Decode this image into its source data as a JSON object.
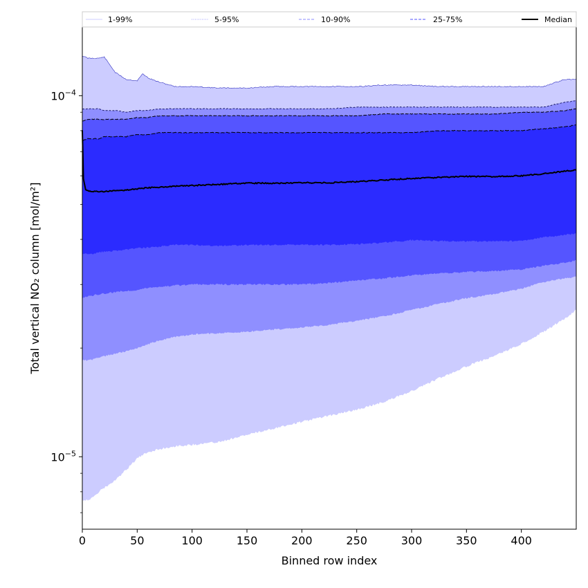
{
  "chart_data": {
    "type": "area",
    "xlabel": "Binned row index",
    "ylabel": "Total vertical NO₂ column [mol/m²]",
    "yscale": "log",
    "xlim": [
      0,
      450
    ],
    "ylim": [
      6.3e-06,
      0.000155
    ],
    "x_ticks": [
      0,
      50,
      100,
      150,
      200,
      250,
      300,
      350,
      400
    ],
    "y_ticks": [
      {
        "value": 1e-05,
        "base": "10",
        "exp": "−5"
      },
      {
        "value": 0.0001,
        "base": "10",
        "exp": "−4"
      }
    ],
    "legend": {
      "placement": "top",
      "entries": [
        {
          "label": "1-99%",
          "color": "#ccccff",
          "style": "solid"
        },
        {
          "label": "5-95%",
          "color": "#a0a0ff",
          "style": "dotted"
        },
        {
          "label": "10-90%",
          "color": "#8a8aff",
          "style": "dashed"
        },
        {
          "label": "25-75%",
          "color": "#5050ff",
          "style": "dashed"
        },
        {
          "label": "Median",
          "color": "#000000",
          "style": "solid"
        }
      ]
    },
    "x": [
      0,
      5,
      10,
      15,
      20,
      30,
      40,
      50,
      55,
      60,
      70,
      85,
      100,
      125,
      150,
      175,
      200,
      225,
      250,
      275,
      300,
      325,
      350,
      375,
      400,
      420,
      440,
      450
    ],
    "bands": [
      {
        "name": "1-99%",
        "color": "#ccccff",
        "lower": [
          7.6e-06,
          7.6e-06,
          7.7e-06,
          8e-06,
          8.2e-06,
          8.6e-06,
          9.2e-06,
          9.9e-06,
          1.01e-05,
          1.03e-05,
          1.05e-05,
          1.07e-05,
          1.08e-05,
          1.1e-05,
          1.15e-05,
          1.2e-05,
          1.25e-05,
          1.3e-05,
          1.35e-05,
          1.42e-05,
          1.52e-05,
          1.65e-05,
          1.78e-05,
          1.9e-05,
          2.05e-05,
          2.22e-05,
          2.42e-05,
          2.55e-05
        ],
        "upper": [
          0.000129,
          0.000127,
          0.000127,
          0.000127,
          0.000128,
          0.000116,
          0.000111,
          0.00011,
          0.000115,
          0.000112,
          0.000109,
          0.000106,
          0.000106,
          0.000105,
          0.000105,
          0.000106,
          0.000106,
          0.000106,
          0.000106,
          0.000107,
          0.000107,
          0.000106,
          0.000106,
          0.000106,
          0.000106,
          0.000106,
          0.000111,
          0.000111
        ]
      },
      {
        "name": "5-95%",
        "color": "#8f8fff",
        "lower": [
          1.85e-05,
          1.85e-05,
          1.86e-05,
          1.88e-05,
          1.9e-05,
          1.93e-05,
          1.96e-05,
          2e-05,
          2.02e-05,
          2.05e-05,
          2.1e-05,
          2.15e-05,
          2.18e-05,
          2.2e-05,
          2.22e-05,
          2.25e-05,
          2.28e-05,
          2.32e-05,
          2.38e-05,
          2.45e-05,
          2.55e-05,
          2.65e-05,
          2.75e-05,
          2.82e-05,
          2.92e-05,
          3.05e-05,
          3.12e-05,
          3.15e-05
        ],
        "upper": [
          9.2e-05,
          9.2e-05,
          9.2e-05,
          9.2e-05,
          9.1e-05,
          9.1e-05,
          9e-05,
          9.1e-05,
          9.1e-05,
          9.1e-05,
          9.2e-05,
          9.2e-05,
          9.2e-05,
          9.2e-05,
          9.2e-05,
          9.2e-05,
          9.2e-05,
          9.2e-05,
          9.3e-05,
          9.3e-05,
          9.3e-05,
          9.3e-05,
          9.3e-05,
          9.3e-05,
          9.3e-05,
          9.3e-05,
          9.6e-05,
          9.7e-05
        ]
      },
      {
        "name": "10-90%",
        "color": "#5555ff",
        "lower": [
          2.75e-05,
          2.78e-05,
          2.8e-05,
          2.82e-05,
          2.83e-05,
          2.86e-05,
          2.88e-05,
          2.9e-05,
          2.92e-05,
          2.94e-05,
          2.96e-05,
          2.98e-05,
          3e-05,
          3e-05,
          3e-05,
          3e-05,
          3e-05,
          3.03e-05,
          3.08e-05,
          3.12e-05,
          3.18e-05,
          3.22e-05,
          3.25e-05,
          3.27e-05,
          3.3e-05,
          3.38e-05,
          3.45e-05,
          3.5e-05
        ],
        "upper": [
          8.5e-05,
          8.6e-05,
          8.6e-05,
          8.6e-05,
          8.6e-05,
          8.6e-05,
          8.6e-05,
          8.7e-05,
          8.7e-05,
          8.7e-05,
          8.8e-05,
          8.8e-05,
          8.8e-05,
          8.8e-05,
          8.8e-05,
          8.8e-05,
          8.8e-05,
          8.8e-05,
          8.8e-05,
          8.9e-05,
          8.9e-05,
          8.9e-05,
          8.9e-05,
          8.9e-05,
          9e-05,
          9e-05,
          9.1e-05,
          9.2e-05
        ]
      },
      {
        "name": "25-75%",
        "color": "#2b2bff",
        "lower": [
          3.65e-05,
          3.65e-05,
          3.65e-05,
          3.68e-05,
          3.7e-05,
          3.72e-05,
          3.75e-05,
          3.78e-05,
          3.79e-05,
          3.8e-05,
          3.82e-05,
          3.86e-05,
          3.86e-05,
          3.84e-05,
          3.86e-05,
          3.86e-05,
          3.87e-05,
          3.86e-05,
          3.88e-05,
          3.92e-05,
          3.98e-05,
          3.96e-05,
          3.95e-05,
          3.95e-05,
          3.96e-05,
          4.05e-05,
          4.12e-05,
          4.15e-05
        ],
        "upper": [
          7.5e-05,
          7.6e-05,
          7.6e-05,
          7.6e-05,
          7.7e-05,
          7.7e-05,
          7.7e-05,
          7.8e-05,
          7.8e-05,
          7.8e-05,
          7.9e-05,
          7.9e-05,
          7.9e-05,
          7.9e-05,
          7.9e-05,
          7.9e-05,
          7.9e-05,
          7.9e-05,
          7.9e-05,
          7.9e-05,
          7.9e-05,
          8e-05,
          8e-05,
          8e-05,
          8e-05,
          8.1e-05,
          8.2e-05,
          8.3e-05
        ]
      }
    ],
    "median": {
      "x": [
        0,
        1,
        3,
        5,
        10,
        15,
        20,
        30,
        40,
        50,
        60,
        70,
        85,
        100,
        125,
        150,
        175,
        200,
        225,
        250,
        275,
        300,
        325,
        350,
        375,
        400,
        420,
        440,
        450
      ],
      "values": [
        8e-05,
        5.9e-05,
        5.5e-05,
        5.45e-05,
        5.43e-05,
        5.42e-05,
        5.43e-05,
        5.45e-05,
        5.48e-05,
        5.52e-05,
        5.56e-05,
        5.58e-05,
        5.61e-05,
        5.64e-05,
        5.68e-05,
        5.73e-05,
        5.72e-05,
        5.74e-05,
        5.74e-05,
        5.78e-05,
        5.84e-05,
        5.9e-05,
        5.94e-05,
        5.98e-05,
        5.97e-05,
        6e-05,
        6.08e-05,
        6.18e-05,
        6.22e-05
      ]
    }
  }
}
